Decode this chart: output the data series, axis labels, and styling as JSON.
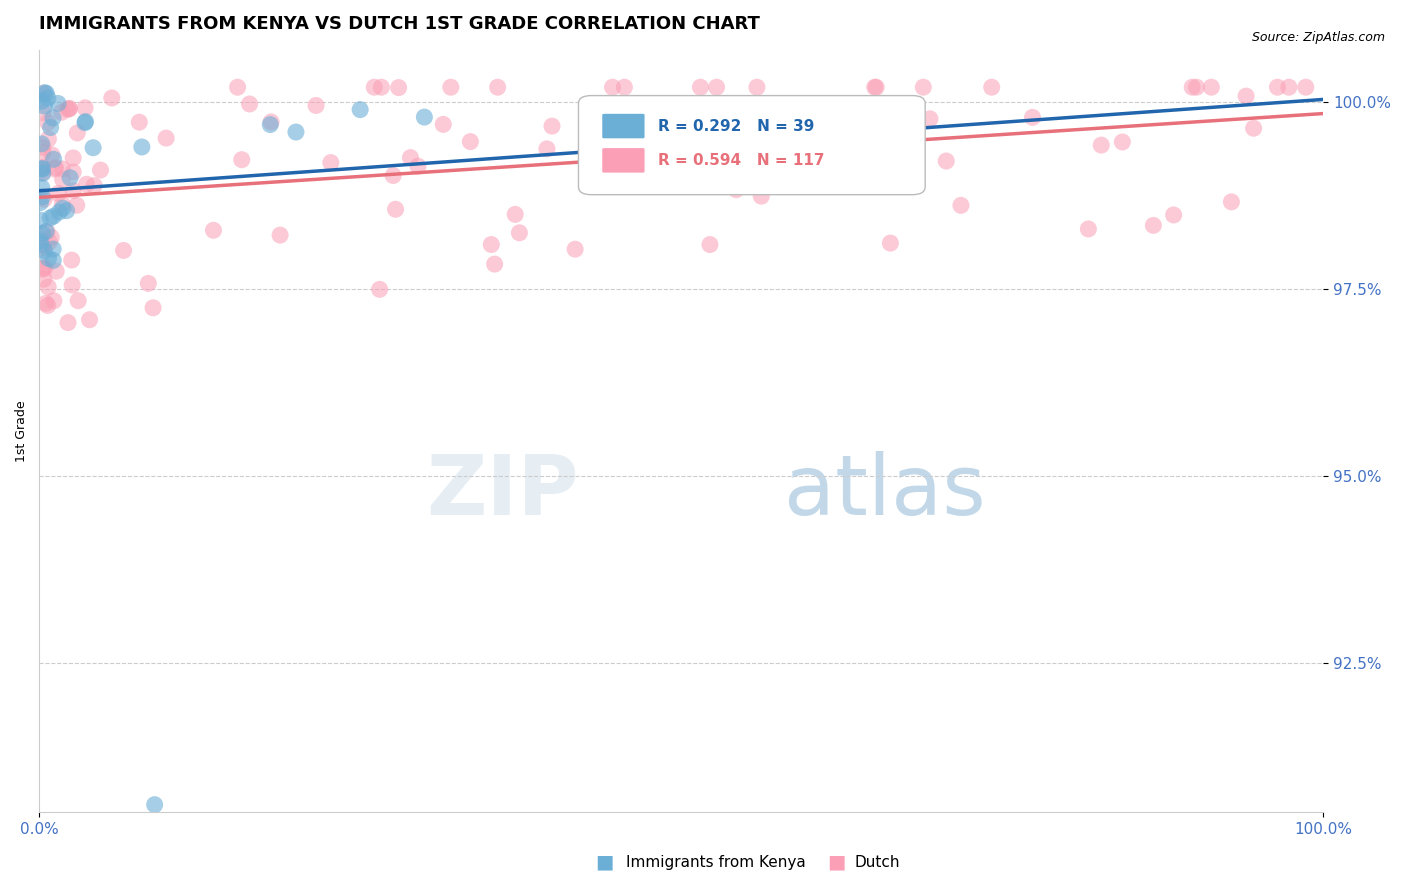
{
  "title": "IMMIGRANTS FROM KENYA VS DUTCH 1ST GRADE CORRELATION CHART",
  "source": "Source: ZipAtlas.com",
  "ylabel_label": "1st Grade",
  "legend_r_kenya": "R = 0.292",
  "legend_n_kenya": "N = 39",
  "legend_r_dutch": "R = 0.594",
  "legend_n_dutch": "N = 117",
  "kenya_color": "#6baed6",
  "dutch_color": "#fa9fb5",
  "kenya_line_color": "#2166ac",
  "dutch_line_color": "#e8707a",
  "xlim": [
    0.0,
    1.0
  ],
  "ylim": [
    0.905,
    1.007
  ],
  "yticks": [
    0.925,
    0.95,
    0.975,
    1.0
  ],
  "ytick_labels": [
    "92.5%",
    "95.0%",
    "97.5%",
    "100.0%"
  ],
  "xticks": [
    0.0,
    1.0
  ],
  "xtick_labels": [
    "0.0%",
    "100.0%"
  ],
  "title_fontsize": 13,
  "axis_color": "#4472c4",
  "background_color": "#ffffff"
}
